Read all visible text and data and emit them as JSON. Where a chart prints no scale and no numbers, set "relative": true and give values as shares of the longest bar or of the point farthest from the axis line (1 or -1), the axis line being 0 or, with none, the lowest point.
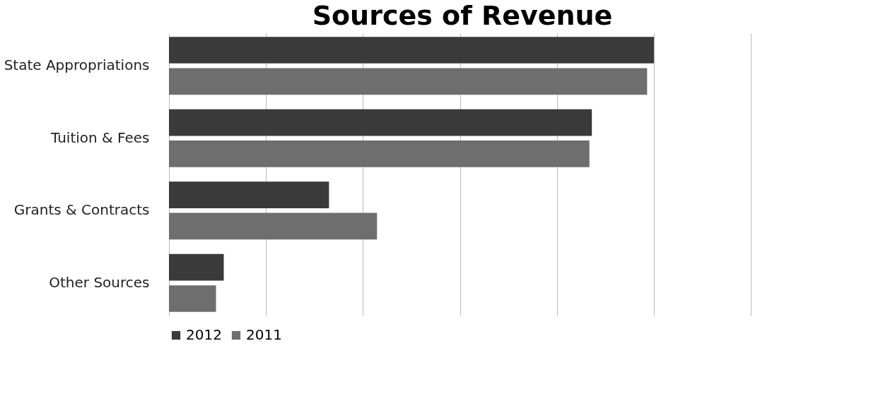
{
  "chart_data": {
    "type": "bar",
    "title": "Sources of Revenue",
    "orientation": "horizontal",
    "relative": true,
    "grid": "x",
    "legend": "bottom",
    "categories": [
      "State Appropriations",
      "Tuition & Fees",
      "Grants & Contracts",
      "Other Sources"
    ],
    "series": [
      {
        "name": "2012",
        "color": "#3a3a3a",
        "values": [
          1,
          0.872,
          0.33,
          0.113
        ]
      },
      {
        "name": "2011",
        "color": "#6e6e6e",
        "values": [
          0.986,
          0.867,
          0.429,
          0.097
        ]
      }
    ]
  }
}
